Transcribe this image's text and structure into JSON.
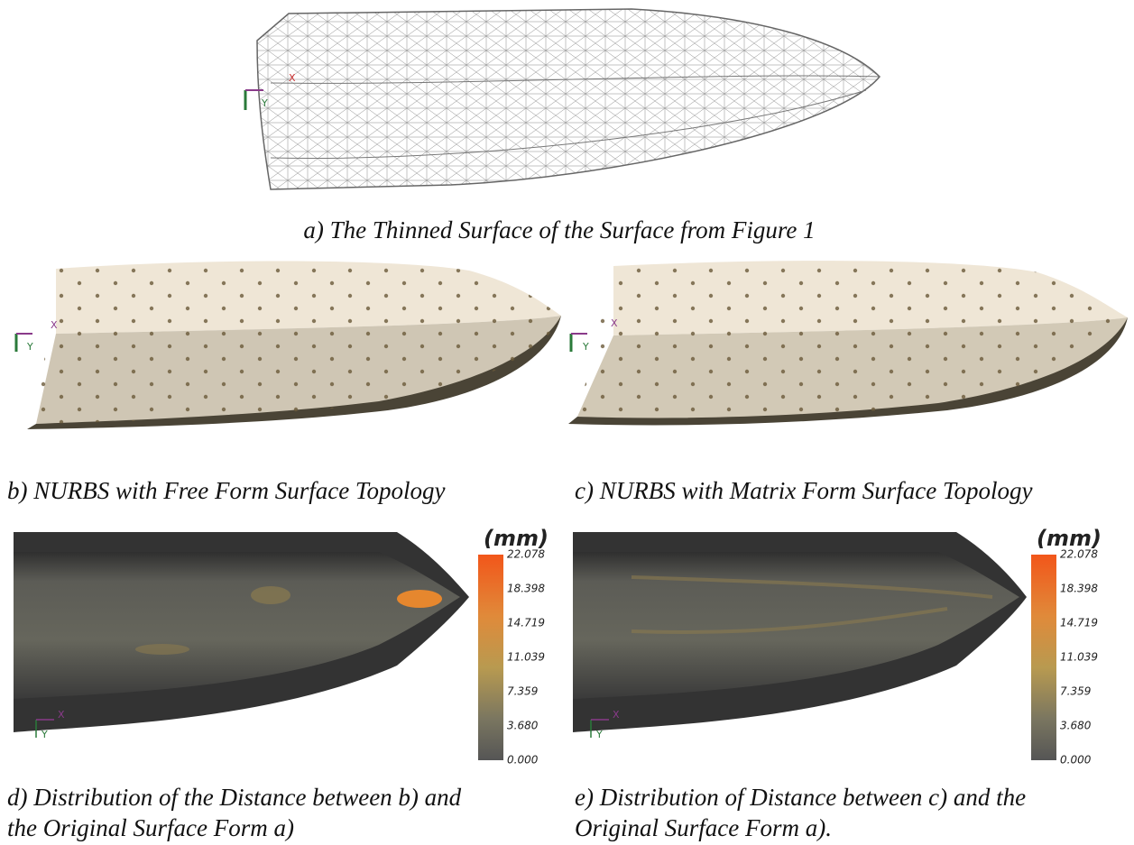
{
  "panels": [
    {
      "caption": "a) The Thinned Surface of the Surface from Figure 1",
      "axes": {
        "x": "X",
        "y": "Y"
      }
    },
    {
      "caption": "b) NURBS with Free Form Surface Topology",
      "axes": {
        "x": "X",
        "y": "Y"
      }
    },
    {
      "caption": "c) NURBS with Matrix Form Surface Topology",
      "axes": {
        "x": "X",
        "y": "Y"
      }
    },
    {
      "caption_lines": [
        "d) Distribution of the Distance between b) and",
        "the Original Surface Form a)"
      ],
      "axes": {
        "x": "X",
        "y": "Y"
      },
      "colorbar": {
        "unit": "(mm)",
        "ticks": [
          "22.078",
          "18.398",
          "14.719",
          "11.039",
          "7.359",
          "3.680",
          "0.000"
        ]
      }
    },
    {
      "caption_lines": [
        "e) Distribution of Distance between c) and the",
        "Original Surface Form a)."
      ],
      "axes": {
        "x": "X",
        "y": "Y"
      },
      "colorbar": {
        "unit": "(mm)",
        "ticks": [
          "22.078",
          "18.398",
          "14.719",
          "11.039",
          "7.359",
          "3.680",
          "0.000"
        ]
      }
    }
  ]
}
